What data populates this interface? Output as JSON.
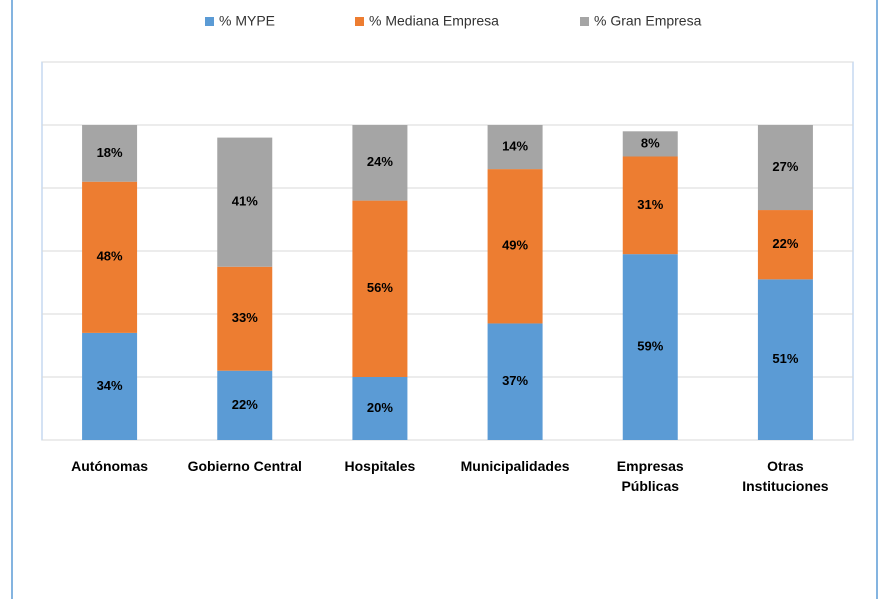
{
  "chart_data": {
    "type": "stacked_bar",
    "categories": [
      "Autónomas",
      "Gobierno Central",
      "Hospitales",
      "Municipalidades",
      "Empresas\nPúblicas",
      "Otras\nInstituciones"
    ],
    "series": [
      {
        "name": "% MYPE",
        "color": "#5b9bd5",
        "values": [
          34,
          22,
          20,
          37,
          59,
          51
        ],
        "value_labels": [
          "34%",
          "22%",
          "20%",
          "37%",
          "59%",
          "51%"
        ]
      },
      {
        "name": "% Mediana Empresa",
        "color": "#ed7d31",
        "values": [
          48,
          33,
          56,
          49,
          31,
          22
        ],
        "value_labels": [
          "48%",
          "33%",
          "56%",
          "49%",
          "31%",
          "22%"
        ]
      },
      {
        "name": "% Gran Empresa",
        "color": "#a5a5a5",
        "values": [
          18,
          41,
          24,
          14,
          8,
          27
        ],
        "value_labels": [
          "18%",
          "41%",
          "24%",
          "14%",
          "8%",
          "27%"
        ]
      }
    ],
    "ylim": [
      0,
      120
    ],
    "yticks": [
      0,
      20,
      40,
      60,
      80,
      100,
      120
    ],
    "grid": true,
    "legend": "top"
  }
}
